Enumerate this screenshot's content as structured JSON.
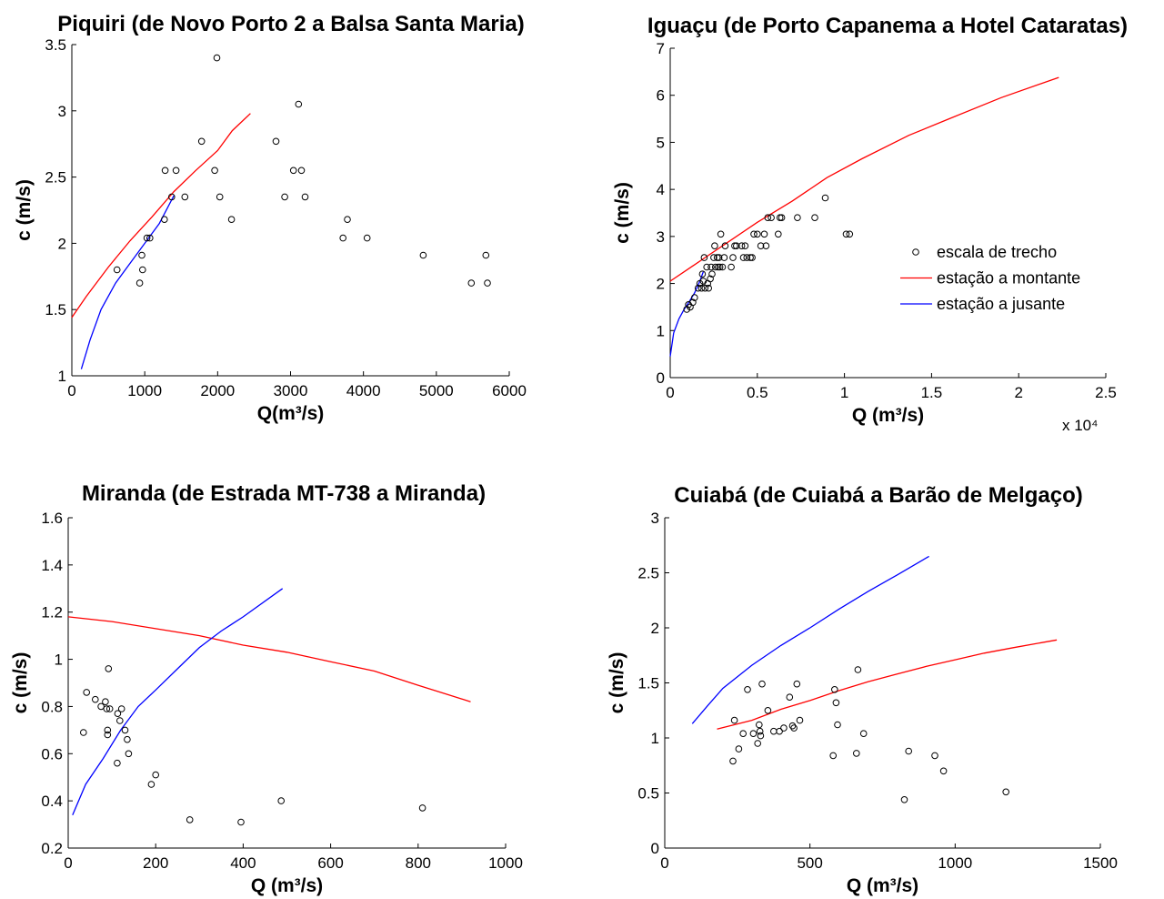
{
  "colors": {
    "montante": "#ff0000",
    "jusante": "#0000ff",
    "obs": "#000000"
  },
  "legend": {
    "items": [
      {
        "label": "escala de trecho",
        "marker": "circle",
        "color": "#000000"
      },
      {
        "label": "estação a montante",
        "marker": "line",
        "color": "#ff0000"
      },
      {
        "label": "estação a jusante",
        "marker": "line",
        "color": "#0000ff"
      }
    ],
    "placement": "inside right of Iguaçu panel"
  },
  "chart_data": [
    {
      "type": "scatter",
      "title": "Piquiri (de Novo Porto 2 a Balsa Santa Maria)",
      "xlabel": "Q(m³/s)",
      "ylabel": "c (m/s)",
      "xlim": [
        0,
        6000
      ],
      "ylim": [
        1,
        3.5
      ],
      "xticks": [
        0,
        1000,
        2000,
        3000,
        4000,
        5000,
        6000
      ],
      "xtick_labels": [
        "0",
        "1000",
        "2000",
        "3000",
        "4000",
        "5000",
        "6000"
      ],
      "yticks": [
        1,
        1.5,
        2,
        2.5,
        3,
        3.5
      ],
      "ytick_labels": [
        "1",
        "1.5",
        "2",
        "2.5",
        "3",
        "3.5"
      ],
      "x_multiplier": "",
      "points": [
        [
          620,
          1.8
        ],
        [
          930,
          1.7
        ],
        [
          960,
          1.91
        ],
        [
          970,
          1.8
        ],
        [
          1030,
          2.04
        ],
        [
          1070,
          2.04
        ],
        [
          1270,
          2.18
        ],
        [
          1280,
          2.55
        ],
        [
          1370,
          2.35
        ],
        [
          1430,
          2.55
        ],
        [
          1550,
          2.35
        ],
        [
          1780,
          2.77
        ],
        [
          1960,
          2.55
        ],
        [
          1990,
          3.4
        ],
        [
          2030,
          2.35
        ],
        [
          2190,
          2.18
        ],
        [
          2800,
          2.77
        ],
        [
          2920,
          2.35
        ],
        [
          3040,
          2.55
        ],
        [
          3110,
          3.05
        ],
        [
          3150,
          2.55
        ],
        [
          3200,
          2.35
        ],
        [
          3720,
          2.04
        ],
        [
          3780,
          2.18
        ],
        [
          4050,
          2.04
        ],
        [
          4820,
          1.91
        ],
        [
          5480,
          1.7
        ],
        [
          5680,
          1.91
        ],
        [
          5700,
          1.7
        ]
      ],
      "series": [
        {
          "color": "#ff0000",
          "points": [
            [
              0,
              1.44
            ],
            [
              200,
              1.6
            ],
            [
              500,
              1.82
            ],
            [
              800,
              2.02
            ],
            [
              1100,
              2.2
            ],
            [
              1400,
              2.39
            ],
            [
              1700,
              2.55
            ],
            [
              2000,
              2.7
            ],
            [
              2200,
              2.85
            ],
            [
              2450,
              2.98
            ]
          ]
        },
        {
          "color": "#0000ff",
          "points": [
            [
              130,
              1.05
            ],
            [
              250,
              1.27
            ],
            [
              400,
              1.5
            ],
            [
              600,
              1.7
            ],
            [
              800,
              1.85
            ],
            [
              1000,
              2.0
            ],
            [
              1200,
              2.15
            ],
            [
              1400,
              2.36
            ]
          ]
        }
      ]
    },
    {
      "type": "scatter",
      "title": "Iguaçu (de Porto Capanema a Hotel Cataratas)",
      "xlabel": "Q (m³/s)",
      "ylabel": "c (m/s)",
      "xlim": [
        0,
        25000
      ],
      "ylim": [
        0,
        7
      ],
      "xticks": [
        0,
        5000,
        10000,
        15000,
        20000,
        25000
      ],
      "xtick_labels": [
        "0",
        "0.5",
        "1",
        "1.5",
        "2",
        "2.5"
      ],
      "yticks": [
        0,
        1,
        2,
        3,
        4,
        5,
        6,
        7
      ],
      "ytick_labels": [
        "0",
        "1",
        "2",
        "3",
        "4",
        "5",
        "6",
        "7"
      ],
      "x_multiplier": "x 10⁴",
      "points": [
        [
          950,
          1.45
        ],
        [
          1050,
          1.55
        ],
        [
          1150,
          1.5
        ],
        [
          1300,
          1.6
        ],
        [
          1400,
          1.7
        ],
        [
          1600,
          1.9
        ],
        [
          1700,
          2.0
        ],
        [
          1800,
          1.9
        ],
        [
          1850,
          2.2
        ],
        [
          1900,
          2.05
        ],
        [
          1950,
          2.55
        ],
        [
          2000,
          1.9
        ],
        [
          2100,
          2.35
        ],
        [
          2150,
          2.0
        ],
        [
          2200,
          1.9
        ],
        [
          2300,
          2.1
        ],
        [
          2350,
          2.35
        ],
        [
          2400,
          2.2
        ],
        [
          2500,
          2.55
        ],
        [
          2550,
          2.8
        ],
        [
          2600,
          2.35
        ],
        [
          2700,
          2.55
        ],
        [
          2750,
          2.35
        ],
        [
          2800,
          2.55
        ],
        [
          2850,
          2.35
        ],
        [
          2900,
          3.05
        ],
        [
          3000,
          2.35
        ],
        [
          3100,
          2.55
        ],
        [
          3150,
          2.8
        ],
        [
          3500,
          2.35
        ],
        [
          3600,
          2.55
        ],
        [
          3700,
          2.8
        ],
        [
          3800,
          2.8
        ],
        [
          4100,
          2.8
        ],
        [
          4200,
          2.55
        ],
        [
          4300,
          2.8
        ],
        [
          4400,
          2.55
        ],
        [
          4600,
          2.55
        ],
        [
          4700,
          2.55
        ],
        [
          4800,
          3.05
        ],
        [
          5000,
          3.05
        ],
        [
          5200,
          2.8
        ],
        [
          5400,
          3.05
        ],
        [
          5500,
          2.8
        ],
        [
          5600,
          3.4
        ],
        [
          5800,
          3.4
        ],
        [
          6200,
          3.05
        ],
        [
          6300,
          3.4
        ],
        [
          6400,
          3.4
        ],
        [
          7300,
          3.4
        ],
        [
          8300,
          3.4
        ],
        [
          8900,
          3.82
        ],
        [
          10100,
          3.05
        ],
        [
          10300,
          3.05
        ]
      ],
      "series": [
        {
          "color": "#ff0000",
          "points": [
            [
              0,
              2.05
            ],
            [
              1000,
              2.3
            ],
            [
              2000,
              2.55
            ],
            [
              3000,
              2.8
            ],
            [
              5000,
              3.3
            ],
            [
              7000,
              3.75
            ],
            [
              9000,
              4.25
            ],
            [
              11000,
              4.65
            ],
            [
              13700,
              5.15
            ],
            [
              16000,
              5.5
            ],
            [
              19000,
              5.95
            ],
            [
              22300,
              6.38
            ]
          ]
        },
        {
          "color": "#0000ff",
          "points": [
            [
              0,
              0.45
            ],
            [
              200,
              0.95
            ],
            [
              500,
              1.25
            ],
            [
              800,
              1.45
            ],
            [
              1100,
              1.62
            ],
            [
              1400,
              1.8
            ],
            [
              1700,
              2.05
            ],
            [
              1900,
              2.25
            ]
          ]
        }
      ]
    },
    {
      "type": "scatter",
      "title": "Miranda (de Estrada MT-738 a Miranda)",
      "xlabel": "Q (m³/s)",
      "ylabel": "c (m/s)",
      "xlim": [
        0,
        1000
      ],
      "ylim": [
        0.2,
        1.6
      ],
      "xticks": [
        0,
        200,
        400,
        600,
        800,
        1000
      ],
      "xtick_labels": [
        "0",
        "200",
        "400",
        "600",
        "800",
        "1000"
      ],
      "yticks": [
        0.2,
        0.4,
        0.6,
        0.8,
        1,
        1.2,
        1.4,
        1.6
      ],
      "ytick_labels": [
        "0.2",
        "0.4",
        "0.6",
        "0.8",
        "1",
        "1.2",
        "1.4",
        "1.6"
      ],
      "x_multiplier": "",
      "points": [
        [
          35,
          0.69
        ],
        [
          42,
          0.86
        ],
        [
          62,
          0.83
        ],
        [
          75,
          0.8
        ],
        [
          85,
          0.82
        ],
        [
          88,
          0.79
        ],
        [
          90,
          0.7
        ],
        [
          90,
          0.68
        ],
        [
          92,
          0.96
        ],
        [
          95,
          0.79
        ],
        [
          112,
          0.56
        ],
        [
          113,
          0.77
        ],
        [
          118,
          0.74
        ],
        [
          122,
          0.79
        ],
        [
          130,
          0.7
        ],
        [
          135,
          0.66
        ],
        [
          138,
          0.6
        ],
        [
          190,
          0.47
        ],
        [
          200,
          0.51
        ],
        [
          278,
          0.32
        ],
        [
          395,
          0.31
        ],
        [
          487,
          0.4
        ],
        [
          810,
          0.37
        ]
      ],
      "series": [
        {
          "color": "#ff0000",
          "points": [
            [
              0,
              1.18
            ],
            [
              100,
              1.16
            ],
            [
              200,
              1.13
            ],
            [
              300,
              1.1
            ],
            [
              400,
              1.06
            ],
            [
              500,
              1.03
            ],
            [
              600,
              0.99
            ],
            [
              700,
              0.95
            ],
            [
              800,
              0.89
            ],
            [
              920,
              0.82
            ]
          ]
        },
        {
          "color": "#0000ff",
          "points": [
            [
              10,
              0.34
            ],
            [
              40,
              0.47
            ],
            [
              80,
              0.58
            ],
            [
              120,
              0.7
            ],
            [
              160,
              0.8
            ],
            [
              200,
              0.87
            ],
            [
              250,
              0.96
            ],
            [
              300,
              1.05
            ],
            [
              350,
              1.12
            ],
            [
              400,
              1.18
            ],
            [
              490,
              1.3
            ]
          ]
        }
      ]
    },
    {
      "type": "scatter",
      "title": "Cuiabá (de Cuiabá a Barão de Melgaço)",
      "xlabel": "Q (m³/s)",
      "ylabel": "c (m/s)",
      "xlim": [
        0,
        1500
      ],
      "ylim": [
        0,
        3
      ],
      "xticks": [
        0,
        500,
        1000,
        1500
      ],
      "xtick_labels": [
        "0",
        "500",
        "1000",
        "1500"
      ],
      "yticks": [
        0,
        0.5,
        1,
        1.5,
        2,
        2.5,
        3
      ],
      "ytick_labels": [
        "0",
        "0.5",
        "1",
        "1.5",
        "2",
        "2.5",
        "3"
      ],
      "x_multiplier": "",
      "points": [
        [
          235,
          0.79
        ],
        [
          240,
          1.16
        ],
        [
          255,
          0.9
        ],
        [
          270,
          1.04
        ],
        [
          285,
          1.44
        ],
        [
          305,
          1.04
        ],
        [
          320,
          0.95
        ],
        [
          325,
          1.12
        ],
        [
          328,
          1.06
        ],
        [
          330,
          1.02
        ],
        [
          335,
          1.49
        ],
        [
          355,
          1.25
        ],
        [
          375,
          1.06
        ],
        [
          395,
          1.06
        ],
        [
          410,
          1.09
        ],
        [
          430,
          1.37
        ],
        [
          440,
          1.11
        ],
        [
          445,
          1.09
        ],
        [
          455,
          1.49
        ],
        [
          465,
          1.16
        ],
        [
          580,
          0.84
        ],
        [
          585,
          1.44
        ],
        [
          590,
          1.32
        ],
        [
          595,
          1.12
        ],
        [
          660,
          0.86
        ],
        [
          665,
          1.62
        ],
        [
          685,
          1.04
        ],
        [
          840,
          0.88
        ],
        [
          825,
          0.44
        ],
        [
          930,
          0.84
        ],
        [
          960,
          0.7
        ],
        [
          1175,
          0.51
        ]
      ],
      "series": [
        {
          "color": "#ff0000",
          "points": [
            [
              180,
              1.08
            ],
            [
              300,
              1.16
            ],
            [
              400,
              1.26
            ],
            [
              500,
              1.34
            ],
            [
              600,
              1.43
            ],
            [
              700,
              1.51
            ],
            [
              800,
              1.58
            ],
            [
              900,
              1.65
            ],
            [
              1000,
              1.71
            ],
            [
              1100,
              1.77
            ],
            [
              1200,
              1.82
            ],
            [
              1350,
              1.89
            ]
          ]
        },
        {
          "color": "#0000ff",
          "points": [
            [
              95,
              1.13
            ],
            [
              150,
              1.3
            ],
            [
              200,
              1.45
            ],
            [
              300,
              1.66
            ],
            [
              400,
              1.84
            ],
            [
              500,
              2.0
            ],
            [
              600,
              2.17
            ],
            [
              700,
              2.33
            ],
            [
              800,
              2.48
            ],
            [
              910,
              2.65
            ]
          ]
        }
      ]
    }
  ]
}
